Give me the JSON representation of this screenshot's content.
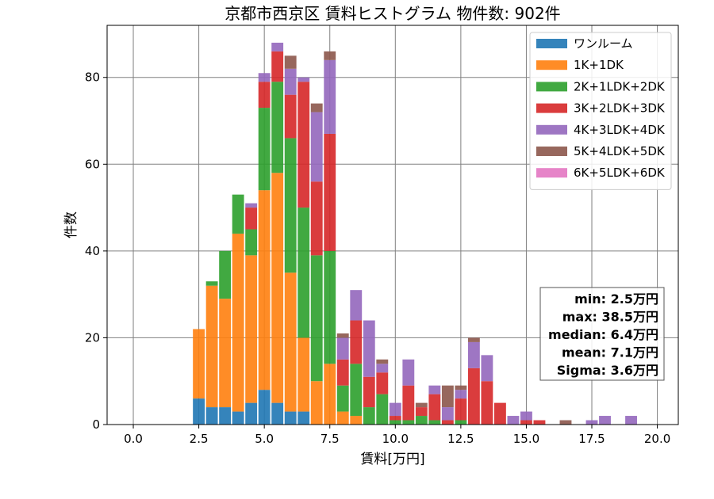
{
  "chart_data": {
    "type": "bar",
    "title": "京都市西京区 賃料ヒストグラム 物件数: 902件",
    "xlabel": "賃料[万円]",
    "ylabel": "件数",
    "xlim": [
      -1.0,
      20.8
    ],
    "ylim": [
      0,
      92
    ],
    "x_ticks": [
      0.0,
      2.5,
      5.0,
      7.5,
      10.0,
      12.5,
      15.0,
      17.5,
      20.0
    ],
    "x_tick_labels": [
      "0.0",
      "2.5",
      "5.0",
      "7.5",
      "10.0",
      "12.5",
      "15.0",
      "17.5",
      "20.0"
    ],
    "y_ticks": [
      0,
      20,
      40,
      60,
      80
    ],
    "y_tick_labels": [
      "0",
      "20",
      "40",
      "60",
      "80"
    ],
    "grid": true,
    "stacked": true,
    "bin_width": 0.5,
    "legend_position": "top-right",
    "x": [
      2.5,
      3.0,
      3.5,
      4.0,
      4.5,
      5.0,
      5.5,
      6.0,
      6.5,
      7.0,
      7.5,
      8.0,
      8.5,
      9.0,
      9.5,
      10.0,
      10.5,
      11.0,
      11.5,
      12.0,
      12.5,
      13.0,
      13.5,
      14.0,
      14.5,
      15.0,
      15.5,
      16.0,
      16.5,
      17.0,
      17.5,
      18.0,
      18.5,
      19.0,
      19.5,
      20.0
    ],
    "series": [
      {
        "name": "ワンルーム",
        "color": "#1f77b4",
        "values": [
          6,
          4,
          4,
          3,
          5,
          8,
          5,
          3,
          3,
          0,
          0,
          0,
          0,
          0,
          0,
          0,
          0,
          0,
          0,
          0,
          0,
          0,
          0,
          0,
          0,
          0,
          0,
          0,
          0,
          0,
          0,
          0,
          0,
          0,
          0,
          0
        ]
      },
      {
        "name": "1K+1DK",
        "color": "#ff7f0e",
        "values": [
          16,
          28,
          25,
          41,
          34,
          46,
          53,
          32,
          17,
          10,
          14,
          3,
          2,
          0,
          0,
          0,
          0,
          0,
          0,
          0,
          0,
          0,
          0,
          0,
          0,
          0,
          0,
          0,
          0,
          0,
          0,
          0,
          0,
          0,
          0,
          0
        ]
      },
      {
        "name": "2K+1LDK+2DK",
        "color": "#2ca02c",
        "values": [
          0,
          1,
          11,
          9,
          6,
          19,
          21,
          31,
          30,
          29,
          26,
          6,
          12,
          4,
          7,
          1,
          1,
          2,
          1,
          0,
          1,
          0,
          0,
          0,
          0,
          0,
          0,
          0,
          0,
          0,
          0,
          0,
          0,
          0,
          0,
          0
        ]
      },
      {
        "name": "3K+2LDK+3DK",
        "color": "#d62728",
        "values": [
          0,
          0,
          0,
          0,
          5,
          6,
          7,
          10,
          29,
          17,
          27,
          6,
          10,
          7,
          5,
          1,
          8,
          2,
          6,
          1,
          5,
          13,
          10,
          5,
          0,
          1,
          1,
          0,
          0,
          0,
          0,
          0,
          0,
          0,
          0,
          0
        ]
      },
      {
        "name": "4K+3LDK+4DK",
        "color": "#9467bd",
        "values": [
          0,
          0,
          0,
          0,
          1,
          2,
          2,
          6,
          1,
          16,
          17,
          5,
          7,
          13,
          2,
          3,
          6,
          0,
          2,
          3,
          2,
          6,
          6,
          0,
          2,
          2,
          0,
          0,
          0,
          0,
          1,
          2,
          0,
          2,
          0,
          0
        ]
      },
      {
        "name": "5K+4LDK+5DK",
        "color": "#8c564b",
        "values": [
          0,
          0,
          0,
          0,
          0,
          0,
          0,
          3,
          0,
          2,
          2,
          1,
          0,
          0,
          1,
          0,
          0,
          1,
          0,
          5,
          1,
          1,
          0,
          0,
          0,
          0,
          0,
          0,
          1,
          0,
          0,
          0,
          0,
          0,
          0,
          0
        ]
      },
      {
        "name": "6K+5LDK+6DK",
        "color": "#e377c2",
        "values": [
          0,
          0,
          0,
          0,
          0,
          0,
          0,
          0,
          0,
          0,
          0,
          0,
          0,
          0,
          0,
          0,
          0,
          0,
          0,
          0,
          0,
          0,
          0,
          0,
          0,
          0,
          0,
          0,
          0,
          0,
          0,
          0,
          0,
          0,
          0,
          0
        ]
      }
    ],
    "stats": {
      "min": "min: 2.5万円",
      "max": "max: 38.5万円",
      "median": "median: 6.4万円",
      "mean": "mean: 7.1万円",
      "sigma": "Sigma: 3.6万円"
    }
  }
}
